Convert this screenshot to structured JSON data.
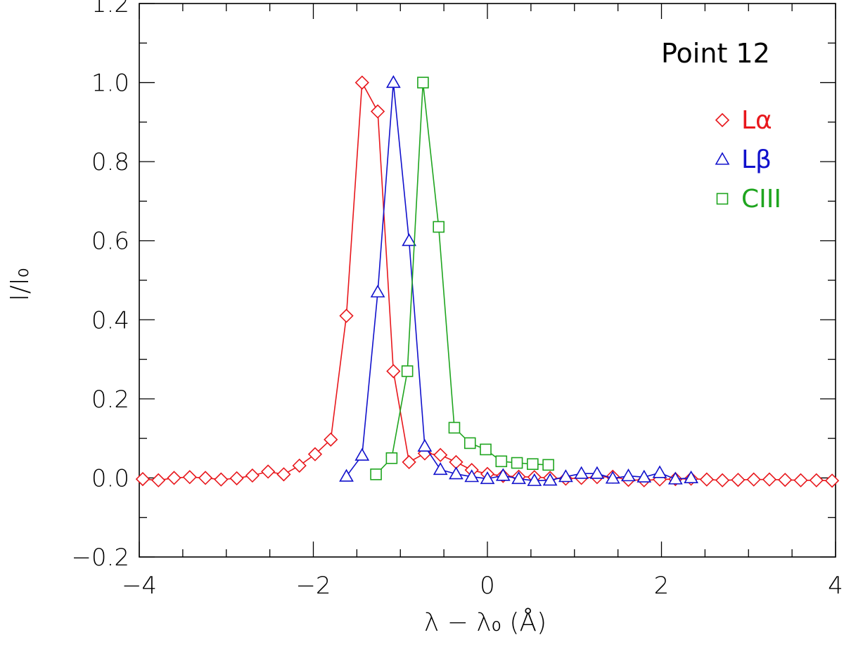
{
  "chart_data": {
    "type": "line",
    "annotation": "Point 12",
    "xlabel": "λ − λ₀ (Å)",
    "ylabel": "I/I₀",
    "xlim": [
      -4,
      4
    ],
    "ylim": [
      -0.2,
      1.2
    ],
    "x_ticks": [
      -4,
      -2,
      0,
      2,
      4
    ],
    "x_tick_labels": [
      "−4",
      "−2",
      "0",
      "2",
      "4"
    ],
    "y_ticks": [
      -0.2,
      0.0,
      0.2,
      0.4,
      0.6,
      0.8,
      1.0,
      1.2
    ],
    "y_tick_labels": [
      "−0.2",
      "0.0",
      "0.2",
      "0.4",
      "0.6",
      "0.8",
      "1.0",
      "1.2"
    ],
    "grid": false,
    "legend_position": "top-right",
    "series": [
      {
        "name": "Lα",
        "color": "#e8171c",
        "marker": "diamond",
        "points": [
          [
            -3.96,
            -0.003
          ],
          [
            -3.78,
            -0.006
          ],
          [
            -3.6,
            0.0
          ],
          [
            -3.42,
            0.002
          ],
          [
            -3.24,
            0.0
          ],
          [
            -3.06,
            -0.004
          ],
          [
            -2.88,
            -0.001
          ],
          [
            -2.7,
            0.006
          ],
          [
            -2.52,
            0.016
          ],
          [
            -2.34,
            0.009
          ],
          [
            -2.16,
            0.031
          ],
          [
            -1.98,
            0.06
          ],
          [
            -1.8,
            0.097
          ],
          [
            -1.62,
            0.41
          ],
          [
            -1.44,
            1.0
          ],
          [
            -1.26,
            0.927
          ],
          [
            -1.08,
            0.27
          ],
          [
            -0.9,
            0.04
          ],
          [
            -0.72,
            0.062
          ],
          [
            -0.54,
            0.058
          ],
          [
            -0.36,
            0.04
          ],
          [
            -0.18,
            0.02
          ],
          [
            0.0,
            0.01
          ],
          [
            0.18,
            0.005
          ],
          [
            0.36,
            0.003
          ],
          [
            0.54,
            0.002
          ],
          [
            0.72,
            0.0
          ],
          [
            0.9,
            -0.002
          ],
          [
            1.08,
            0.0
          ],
          [
            1.26,
            0.002
          ],
          [
            1.44,
            0.003
          ],
          [
            1.62,
            -0.005
          ],
          [
            1.8,
            -0.006
          ],
          [
            1.98,
            -0.004
          ],
          [
            2.16,
            -0.003
          ],
          [
            2.34,
            -0.002
          ],
          [
            2.52,
            -0.004
          ],
          [
            2.7,
            -0.006
          ],
          [
            2.88,
            -0.005
          ],
          [
            3.06,
            -0.004
          ],
          [
            3.24,
            -0.004
          ],
          [
            3.42,
            -0.005
          ],
          [
            3.6,
            -0.006
          ],
          [
            3.78,
            -0.006
          ],
          [
            3.96,
            -0.007
          ]
        ]
      },
      {
        "name": "Lβ",
        "color": "#1111cc",
        "marker": "triangle",
        "points": [
          [
            -1.62,
            0.004
          ],
          [
            -1.44,
            0.057
          ],
          [
            -1.26,
            0.47
          ],
          [
            -1.08,
            1.0
          ],
          [
            -0.9,
            0.6
          ],
          [
            -0.72,
            0.08
          ],
          [
            -0.54,
            0.021
          ],
          [
            -0.36,
            0.01
          ],
          [
            -0.18,
            0.003
          ],
          [
            0.0,
            -0.002
          ],
          [
            0.18,
            0.006
          ],
          [
            0.36,
            -0.002
          ],
          [
            0.54,
            -0.007
          ],
          [
            0.72,
            -0.006
          ],
          [
            0.9,
            0.003
          ],
          [
            1.08,
            0.011
          ],
          [
            1.26,
            0.011
          ],
          [
            1.44,
            -0.001
          ],
          [
            1.62,
            0.005
          ],
          [
            1.8,
            0.002
          ],
          [
            1.98,
            0.013
          ],
          [
            2.16,
            -0.003
          ],
          [
            2.34,
            0.0
          ]
        ]
      },
      {
        "name": "CIII",
        "color": "#1fa51f",
        "marker": "square",
        "points": [
          [
            -1.28,
            0.009
          ],
          [
            -1.1,
            0.05
          ],
          [
            -0.92,
            0.27
          ],
          [
            -0.74,
            1.0
          ],
          [
            -0.56,
            0.635
          ],
          [
            -0.38,
            0.127
          ],
          [
            -0.2,
            0.088
          ],
          [
            -0.02,
            0.072
          ],
          [
            0.16,
            0.042
          ],
          [
            0.34,
            0.038
          ],
          [
            0.52,
            0.035
          ],
          [
            0.7,
            0.033
          ]
        ]
      }
    ]
  }
}
